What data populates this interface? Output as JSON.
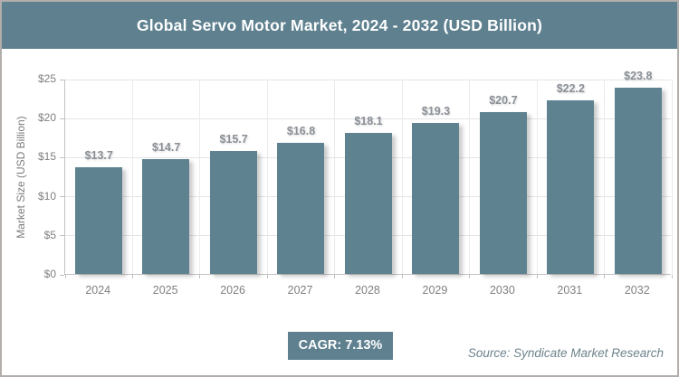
{
  "header": {
    "title": "Global Servo Motor Market, 2024 - 2032 (USD Billion)"
  },
  "chart_data": {
    "type": "bar",
    "title": "Global Servo Motor Market, 2024 - 2032 (USD Billion)",
    "categories": [
      "2024",
      "2025",
      "2026",
      "2027",
      "2028",
      "2029",
      "2030",
      "2031",
      "2032"
    ],
    "values": [
      13.7,
      14.7,
      15.7,
      16.8,
      18.1,
      19.3,
      20.7,
      22.2,
      23.8
    ],
    "value_labels": [
      "$13.7",
      "$14.7",
      "$15.7",
      "$16.8",
      "$18.1",
      "$19.3",
      "$20.7",
      "$22.2",
      "$23.8"
    ],
    "xlabel": "",
    "ylabel": "Market Size (USD Billion)",
    "ylim": [
      0,
      25
    ],
    "ytick_values": [
      0,
      5,
      10,
      15,
      20,
      25
    ],
    "ytick_labels": [
      "$0",
      "$5",
      "$10",
      "$15",
      "$20",
      "$25"
    ],
    "grid": "light horizontal and vertical gridlines",
    "legend_position": "none"
  },
  "footer": {
    "cagr_label": "CAGR: 7.13%",
    "source": "Source: Syndicate Market Research"
  },
  "colors": {
    "header_bg": "#5e808f",
    "bar": "#5e8290",
    "badge_bg": "#5e808f",
    "gridline": "#e4e4e4",
    "axis_line": "#c2c2c2",
    "tick_label": "#7f7f7f",
    "bar_label": "#8b9097",
    "source_text": "#6e838d",
    "page_border": "#b3aeac",
    "title_text": "#ffffff"
  }
}
